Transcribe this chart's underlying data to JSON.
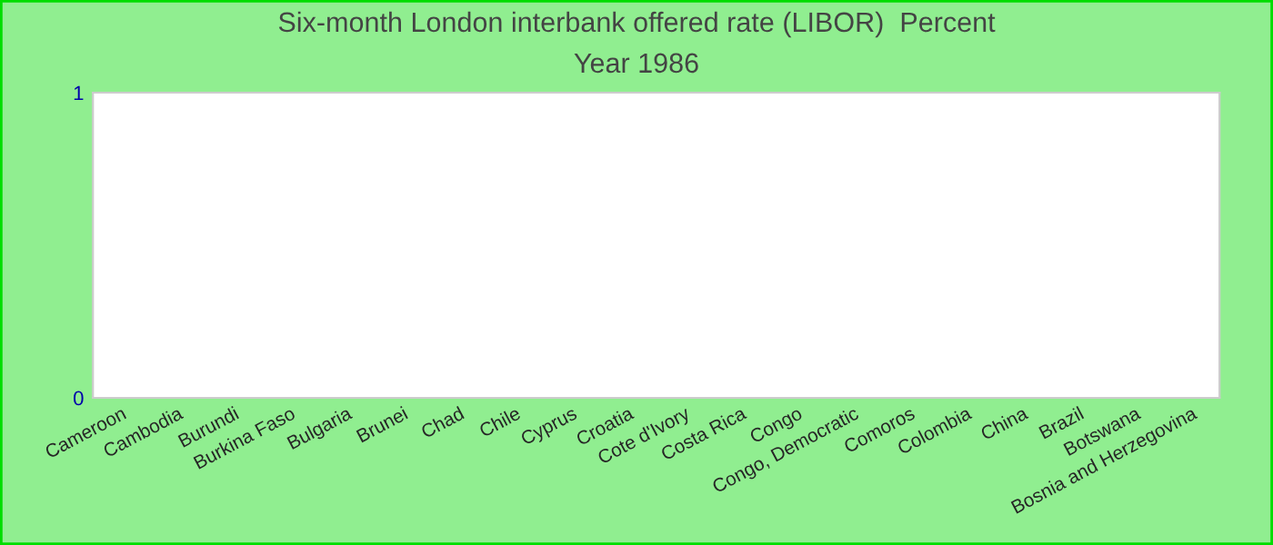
{
  "chart_data": {
    "type": "bar",
    "title": "Six-month London interbank offered rate (LIBOR)  Percent",
    "subtitle": "Year 1986",
    "categories": [
      "Cameroon",
      "Cambodia",
      "Burundi",
      "Burkina Faso",
      "Bulgaria",
      "Brunei",
      "Chad",
      "Chile",
      "Cyprus",
      "Croatia",
      "Cote d'Ivory",
      "Costa Rica",
      "Congo",
      "Congo, Democratic",
      "Comoros",
      "Colombia",
      "China",
      "Brazil",
      "Botswana",
      "Bosnia and Herzegovina"
    ],
    "values": [
      null,
      null,
      null,
      null,
      null,
      null,
      null,
      null,
      null,
      null,
      null,
      null,
      null,
      null,
      null,
      null,
      null,
      null,
      null,
      null
    ],
    "ylim": [
      0,
      1
    ],
    "yticks": [
      0,
      1
    ],
    "grid": false,
    "legend": false
  }
}
